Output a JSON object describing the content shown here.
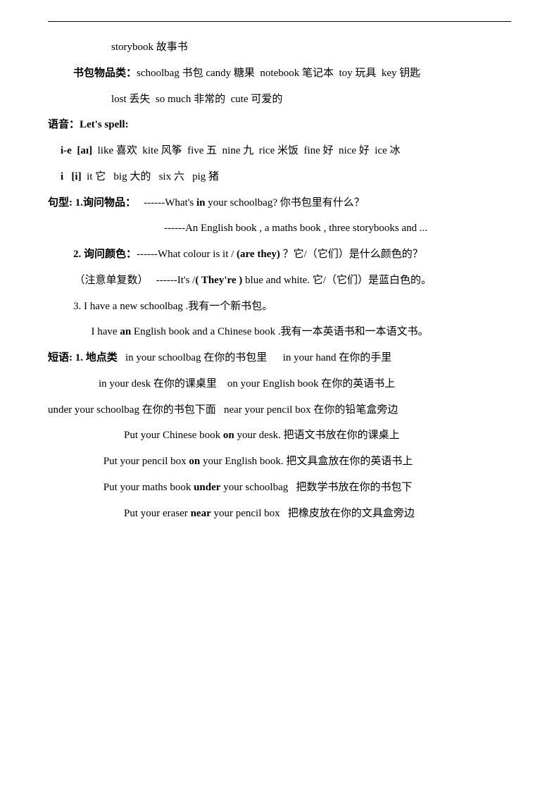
{
  "lines": [
    {
      "cls": "indent1",
      "html": "storybook 故事书"
    },
    {
      "cls": "indent2",
      "html": "<span class=\"b\">书包物品类：</span>schoolbag 书包 candy 糖果&nbsp;&nbsp;notebook 笔记本&nbsp;&nbsp;toy 玩具&nbsp;&nbsp;key 钥匙"
    },
    {
      "cls": "indent1",
      "html": "lost 丢失&nbsp;&nbsp;so much 非常的&nbsp;&nbsp;cute 可爱的"
    },
    {
      "cls": "",
      "html": "<span class=\"b\">语音：Let's spell:</span>"
    },
    {
      "cls": "indent7",
      "html": "<span class=\"b\">i-e&nbsp;&nbsp;[aɪ]</span>&nbsp;&nbsp;like 喜欢&nbsp;&nbsp;kite 风筝&nbsp;&nbsp;five 五&nbsp;&nbsp;nine 九&nbsp;&nbsp;rice 米饭&nbsp;&nbsp;fine 好&nbsp;&nbsp;nice 好&nbsp;&nbsp;ice 冰"
    },
    {
      "cls": "indent7",
      "html": "<span class=\"b\">i&nbsp;&nbsp;&nbsp;[i]</span>&nbsp;&nbsp;it 它&nbsp;&nbsp;&nbsp;big 大的&nbsp;&nbsp;&nbsp;six 六&nbsp;&nbsp;&nbsp;pig 猪"
    },
    {
      "cls": "",
      "html": "<span class=\"b\">句型: 1.询问物品：</span>&nbsp;&nbsp;&nbsp;------What's <span class=\"b\">in</span> your schoolbag?  你书包里有什么？"
    },
    {
      "cls": "indent4",
      "html": "&nbsp;&nbsp;&nbsp;&nbsp;&nbsp;&nbsp;&nbsp;&nbsp;------An English book , a maths book , three storybooks and ..."
    },
    {
      "cls": "indent2",
      "html": "<span class=\"b\">2.  询问颜色：</span>------What colour is it / <span class=\"b\">(are they)</span> ？它/（它们）是什么颜色的？"
    },
    {
      "cls": "",
      "html": "&nbsp;&nbsp;&nbsp;&nbsp;&nbsp;&nbsp;&nbsp;&nbsp;&nbsp;&nbsp;（注意单复数）&nbsp;&nbsp;&nbsp;------It's /<span class=\"b\">( They're )</span> blue and white.  它/（它们）是蓝白色的。"
    },
    {
      "cls": "indent2",
      "html": "3. I have a new schoolbag .我有一个新书包。"
    },
    {
      "cls": "indent3",
      "html": "&nbsp;&nbsp;I have <span class=\"b\">an</span> English book and a Chinese book .我有一本英语书和一本语文书。"
    },
    {
      "cls": "",
      "html": "<span class=\"b\">短语: 1.  地点类</span>&nbsp;&nbsp;&nbsp;in your schoolbag  在你的书包里&nbsp;&nbsp;&nbsp;&nbsp;&nbsp;&nbsp;in your hand  在你的手里"
    },
    {
      "cls": "indent5",
      "html": "in your desk  在你的课桌里&nbsp;&nbsp;&nbsp;&nbsp;on your English book  在你的英语书上"
    },
    {
      "cls": "",
      "html": "under your schoolbag  在你的书包下面&nbsp;&nbsp;&nbsp;near your pencil box  在你的铅笔盒旁边"
    },
    {
      "cls": "indent6",
      "html": "Put your Chinese book <span class=\"b\">on</span> your desk.  把语文书放在你的课桌上"
    },
    {
      "cls": "",
      "html": "&nbsp;&nbsp;&nbsp;&nbsp;&nbsp;&nbsp;&nbsp;&nbsp;&nbsp;&nbsp;&nbsp;&nbsp;&nbsp;&nbsp;&nbsp;&nbsp;&nbsp;&nbsp;&nbsp;&nbsp;&nbsp;Put your pencil box <span class=\"b\">on</span> your English book.  把文具盒放在你的英语书上"
    },
    {
      "cls": "",
      "html": "&nbsp;&nbsp;&nbsp;&nbsp;&nbsp;&nbsp;&nbsp;&nbsp;&nbsp;&nbsp;&nbsp;&nbsp;&nbsp;&nbsp;&nbsp;&nbsp;&nbsp;&nbsp;&nbsp;&nbsp;&nbsp;Put your maths book <span class=\"b\">under</span> your schoolbag&nbsp;&nbsp;&nbsp;把数学书放在你的书包下"
    },
    {
      "cls": "indent6",
      "html": "Put your eraser <span class=\"b\">near</span> your pencil box&nbsp;&nbsp;&nbsp;把橡皮放在你的文具盒旁边"
    }
  ]
}
